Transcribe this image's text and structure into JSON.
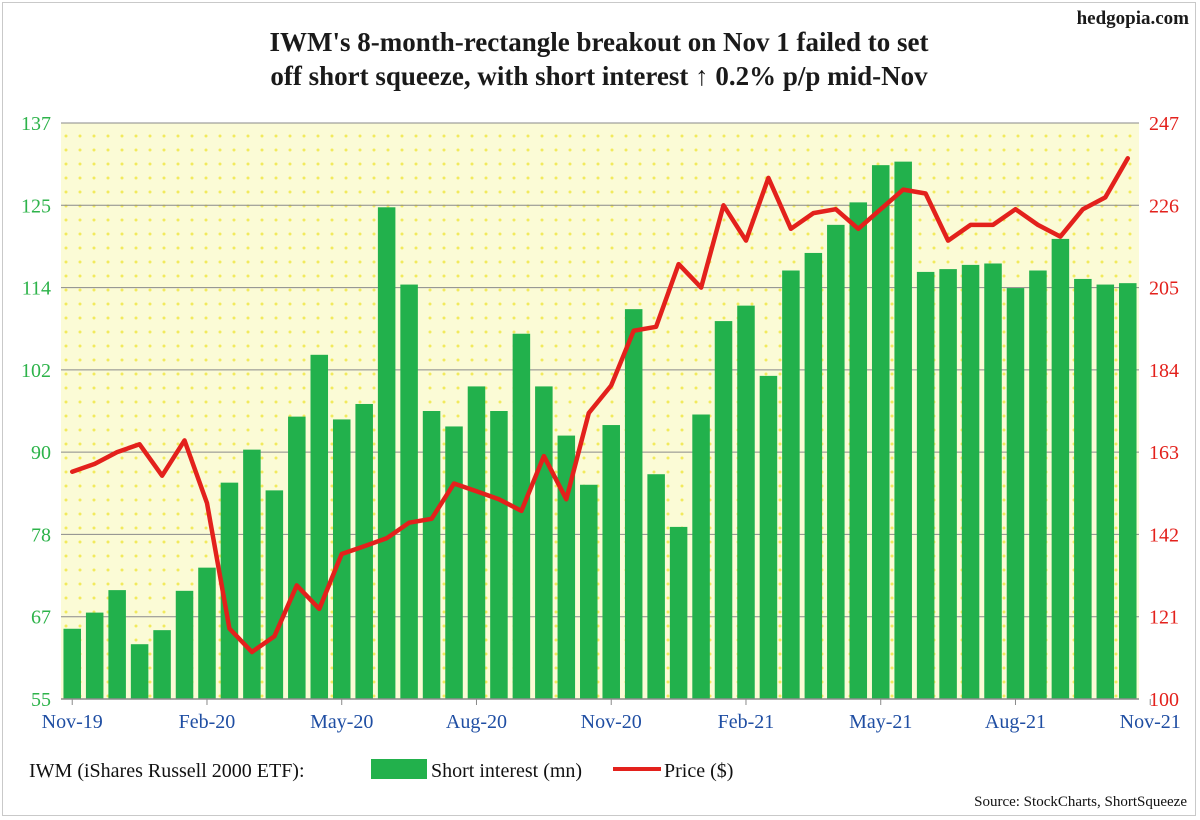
{
  "brand": "hedgopia.com",
  "source": "Source: StockCharts, ShortSqueeze",
  "chart_data": {
    "type": "bar",
    "title_lines": [
      "IWM's 8-month-rectangle breakout on Nov 1 failed to set",
      "off short squeeze, with short interest ↑ 0.2% p/p mid-Nov"
    ],
    "legend_label": "IWM (iShares Russell 2000 ETF):",
    "legend_placement": "bottom",
    "grid": true,
    "background_color": "#fbfbd6",
    "dot_color": "#f2ea5c",
    "bar_color": "#22b14c",
    "line_color": "#e3211c",
    "left_ticks": [
      "55",
      "67",
      "78",
      "90",
      "102",
      "114",
      "125",
      "137"
    ],
    "right_ticks": [
      "100",
      "121",
      "142",
      "163",
      "184",
      "205",
      "226",
      "247"
    ],
    "left_ylim": [
      55,
      137
    ],
    "right_ylim": [
      100,
      247
    ],
    "x_tick_labels": [
      {
        "index": 0,
        "label": "Nov-19"
      },
      {
        "index": 6,
        "label": "Feb-20"
      },
      {
        "index": 12,
        "label": "May-20"
      },
      {
        "index": 18,
        "label": "Aug-20"
      },
      {
        "index": 24,
        "label": "Nov-20"
      },
      {
        "index": 30,
        "label": "Feb-21"
      },
      {
        "index": 36,
        "label": "May-21"
      },
      {
        "index": 42,
        "label": "Aug-21"
      },
      {
        "index": 48,
        "label": "Nov-21"
      }
    ],
    "series": [
      {
        "name": "Short interest (mn)",
        "type": "bar",
        "axis": "left",
        "values": [
          65,
          67.3,
          70.5,
          62.8,
          64.8,
          70.4,
          73.7,
          85.8,
          90.5,
          84.7,
          95.2,
          104,
          94.8,
          97,
          125,
          114,
          96,
          93.8,
          99.5,
          96,
          107,
          99.5,
          92.5,
          85.5,
          94,
          110.5,
          87,
          79.5,
          95.5,
          108.8,
          111,
          101,
          116,
          118.5,
          122.5,
          125.7,
          131,
          131.5,
          115.8,
          116.2,
          116.8,
          117,
          113.5,
          116,
          120.5,
          114.8,
          114,
          114.2
        ]
      },
      {
        "name": "Price ($)",
        "type": "line",
        "axis": "right",
        "values": [
          158,
          160,
          163,
          165,
          157,
          166,
          150,
          118,
          112,
          116,
          129,
          123,
          137,
          139,
          141,
          145,
          146,
          155,
          153,
          151,
          148,
          162,
          151,
          173,
          180,
          194,
          195,
          211,
          205,
          226,
          217,
          233,
          220,
          224,
          225,
          220,
          225,
          230,
          229,
          217,
          221,
          221,
          225,
          221,
          218,
          225,
          228,
          238
        ]
      }
    ]
  }
}
